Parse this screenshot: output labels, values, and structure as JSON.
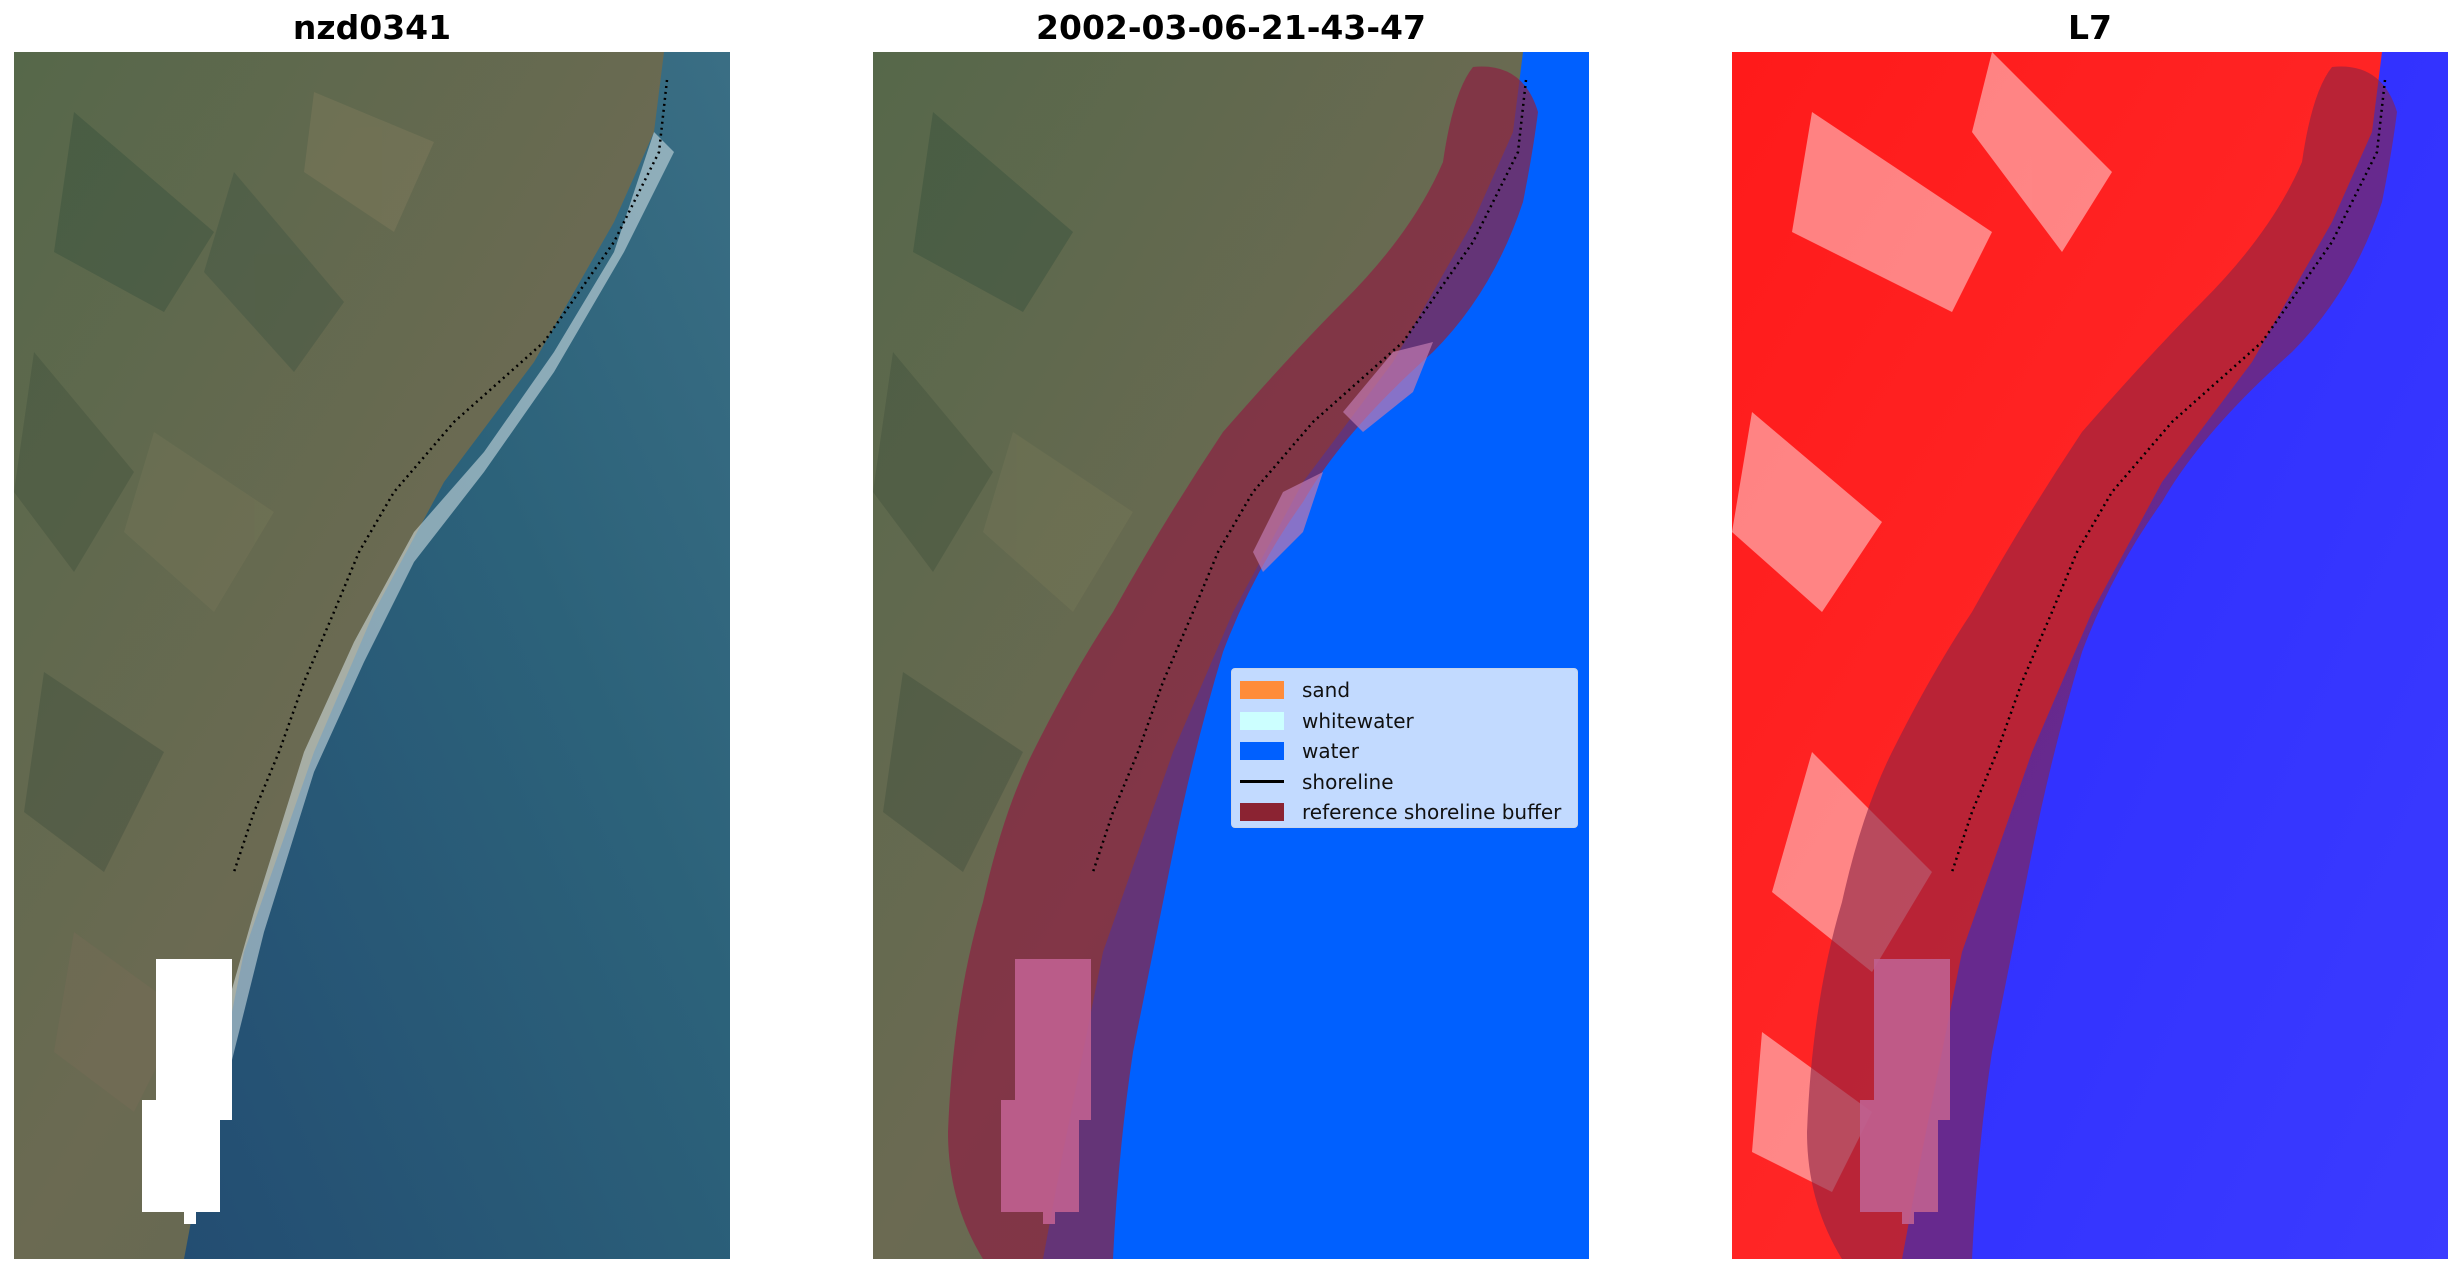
{
  "panels": [
    {
      "title": "nzd0341"
    },
    {
      "title": "2002-03-06-21-43-47"
    },
    {
      "title": "L7"
    }
  ],
  "legend": {
    "items": [
      {
        "label": "sand",
        "color": "#ff8c3a"
      },
      {
        "label": "whitewater",
        "color": "#ccffff"
      },
      {
        "label": "water",
        "color": "#0060ff"
      },
      {
        "label": "shoreline",
        "color": "#000000"
      },
      {
        "label": "reference shoreline buffer",
        "color": "#8b2332"
      }
    ]
  },
  "colors": {
    "land": "#5b6c4c",
    "sea": "#2a5d77",
    "deep_sea": "#244f73",
    "buffer": "#8b2343",
    "water_class": "#0060ff",
    "index_land": "#ff2020",
    "index_water": "#2020ff",
    "cloud_mask": "#ffffff",
    "cloud_mask_overlay": "#c06090"
  }
}
